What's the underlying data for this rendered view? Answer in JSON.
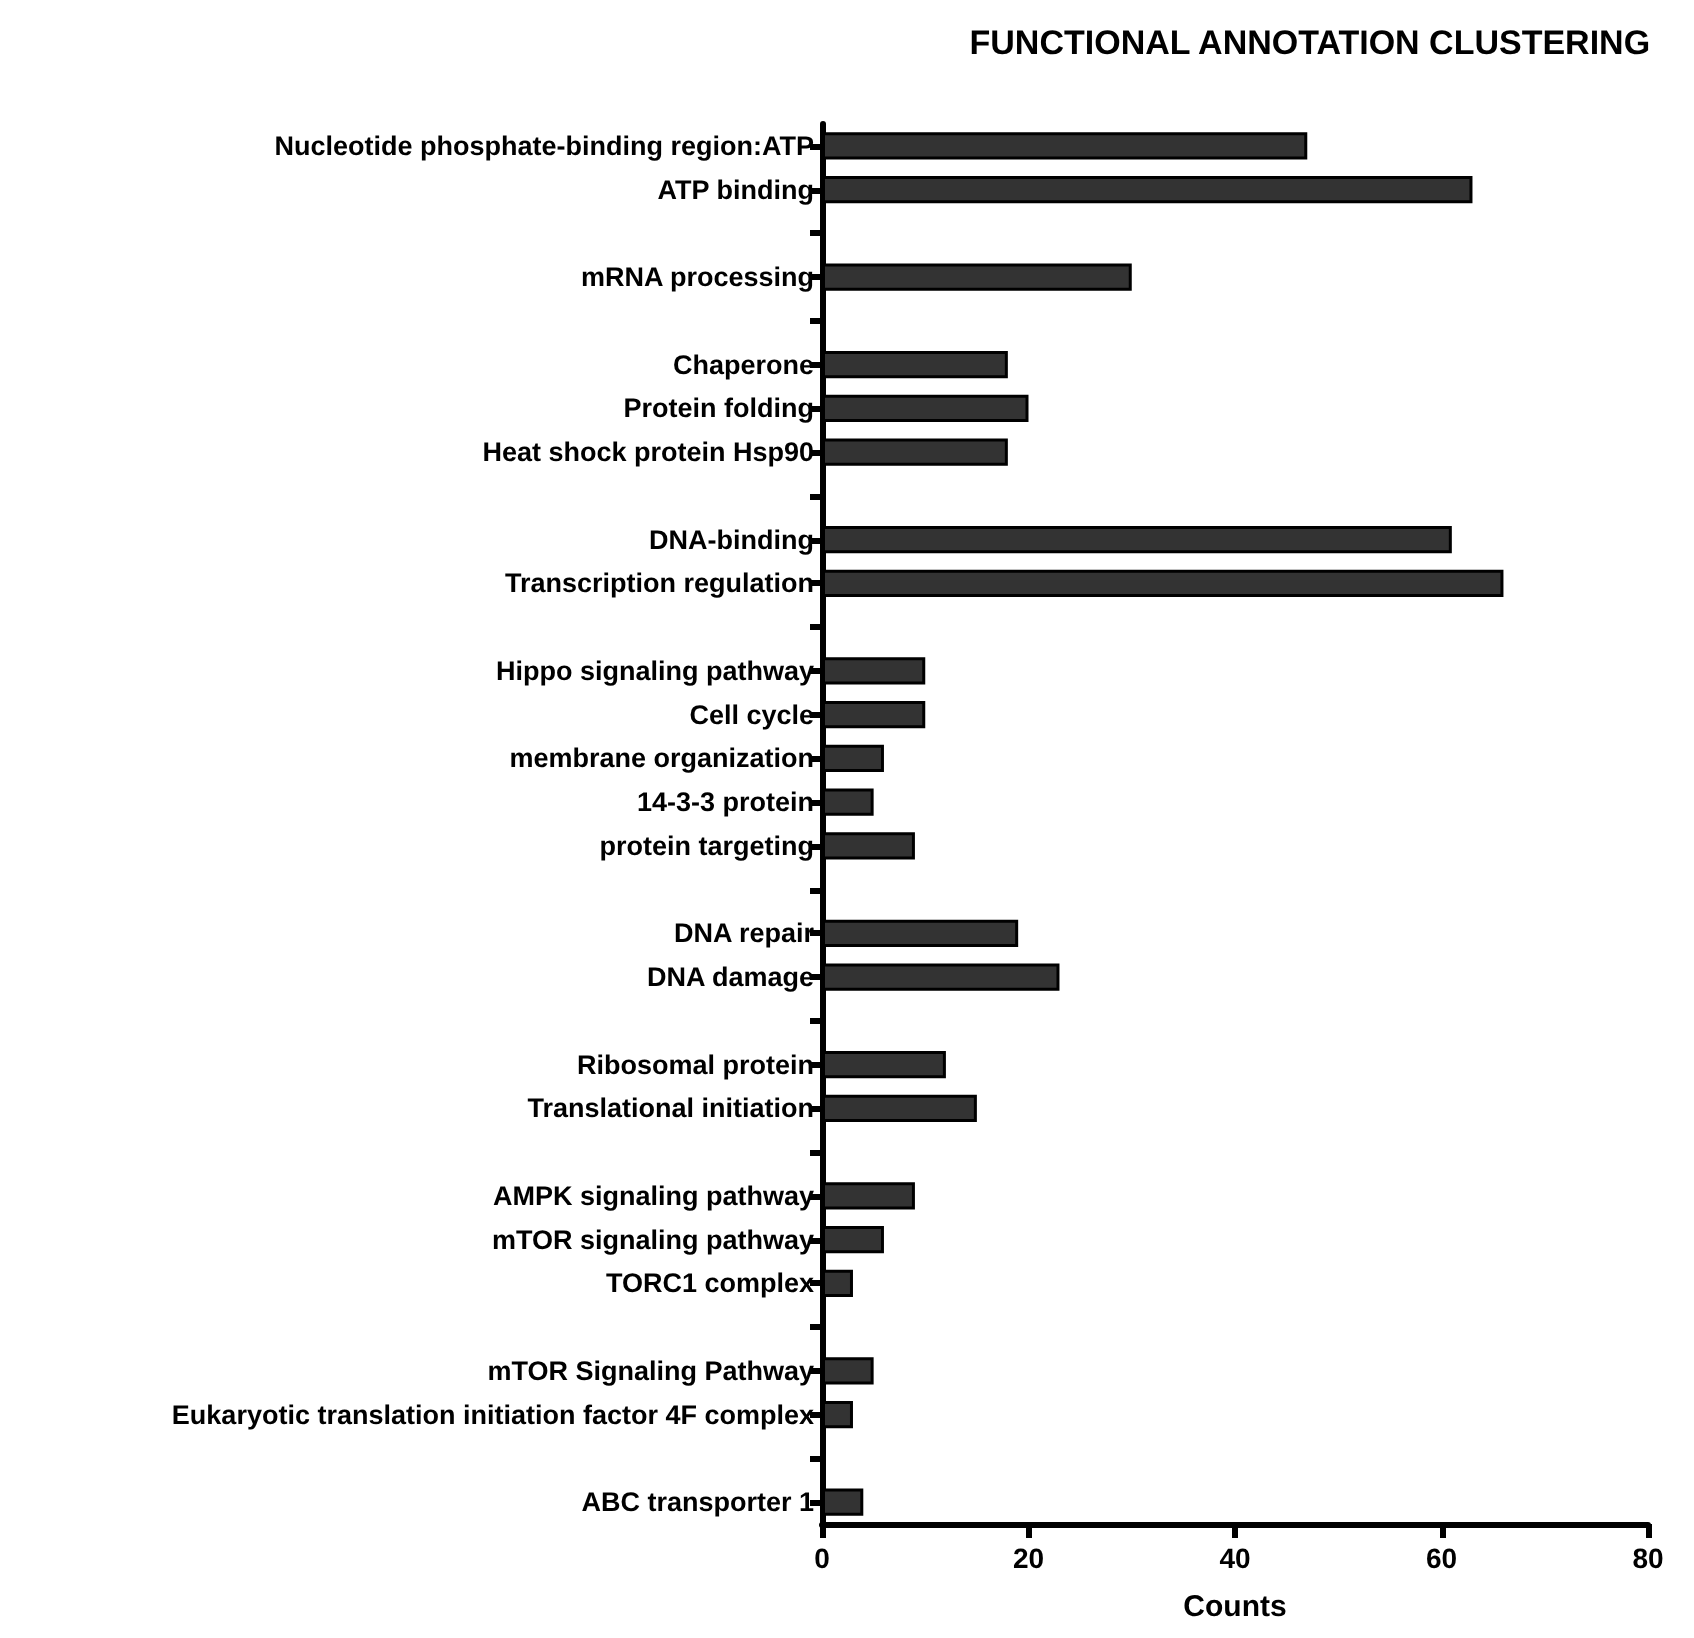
{
  "chart_data": {
    "type": "bar",
    "orientation": "horizontal",
    "title": "FUNCTIONAL ANNOTATION CLUSTERING",
    "xlabel": "Counts",
    "categories": [
      "Nucleotide phosphate-binding region:ATP",
      "ATP binding",
      null,
      "mRNA processing",
      null,
      "Chaperone",
      "Protein folding",
      "Heat shock protein Hsp90",
      null,
      "DNA-binding",
      "Transcription regulation",
      null,
      "Hippo signaling pathway",
      "Cell cycle",
      "membrane organization",
      "14-3-3 protein",
      "protein targeting",
      null,
      "DNA repair",
      "DNA damage",
      null,
      "Ribosomal protein",
      "Translational initiation",
      null,
      "AMPK signaling pathway",
      "mTOR signaling pathway",
      "TORC1 complex",
      null,
      "mTOR Signaling Pathway",
      "Eukaryotic translation initiation factor 4F complex",
      null,
      "ABC transporter 1"
    ],
    "values": [
      47,
      63,
      null,
      30,
      null,
      18,
      20,
      18,
      null,
      61,
      66,
      null,
      10,
      10,
      6,
      5,
      9,
      null,
      19,
      23,
      null,
      12,
      15,
      null,
      9,
      6,
      3,
      null,
      5,
      3,
      null,
      4
    ],
    "color": "#333333",
    "xlim": [
      0,
      80
    ],
    "xticks": [
      0,
      20,
      40,
      60,
      80
    ]
  }
}
